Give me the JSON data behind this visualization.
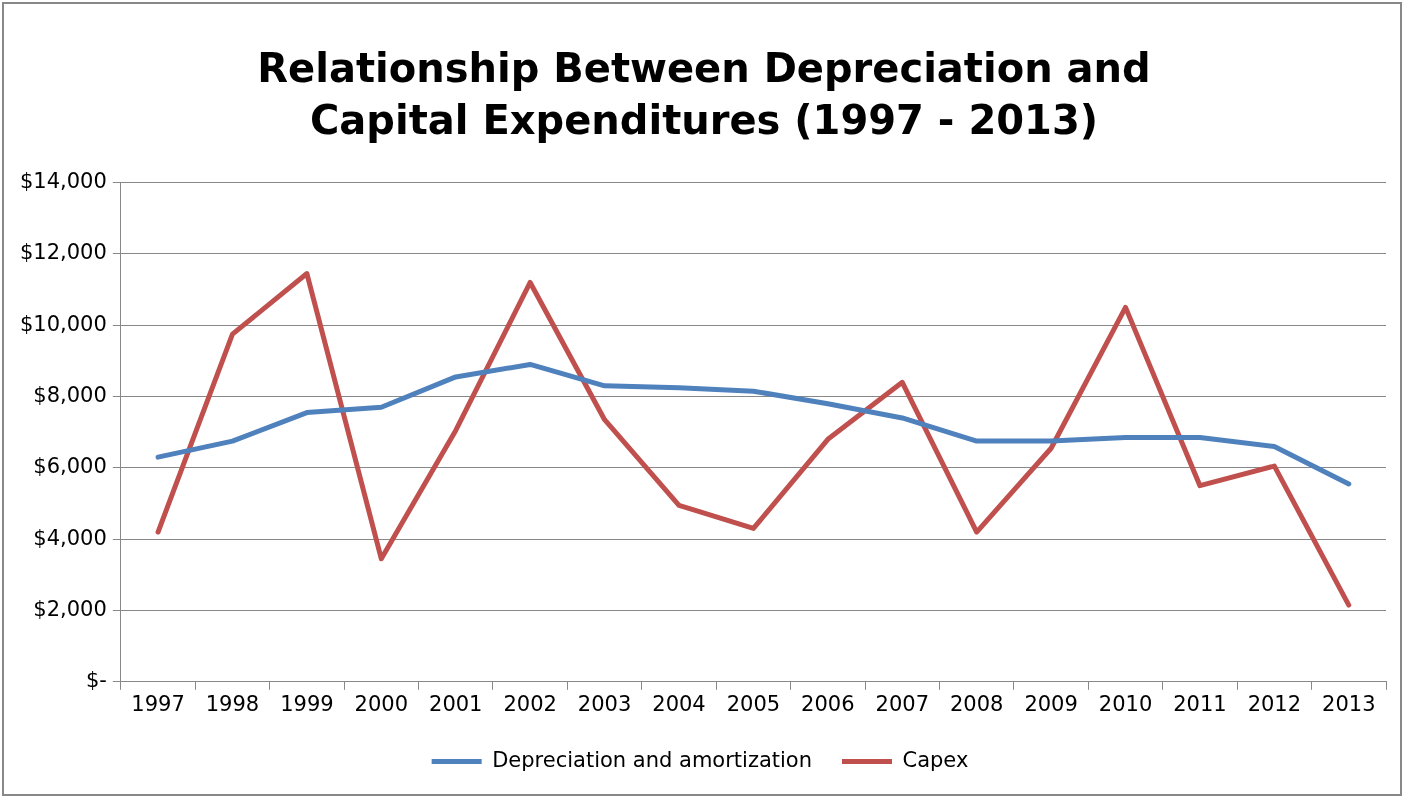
{
  "chart_data": {
    "type": "line",
    "title": "Relationship Between Depreciation and Capital Expenditures (1997 - 2013)",
    "categories": [
      "1997",
      "1998",
      "1999",
      "2000",
      "2001",
      "2002",
      "2003",
      "2004",
      "2005",
      "2006",
      "2007",
      "2008",
      "2009",
      "2010",
      "2011",
      "2012",
      "2013"
    ],
    "series": [
      {
        "name": "Depreciation and amortization",
        "color": "#4f81bd",
        "values": [
          6300,
          6750,
          7550,
          7700,
          8550,
          8900,
          8300,
          8250,
          8150,
          7800,
          7400,
          6750,
          6750,
          6850,
          6850,
          6600,
          5550
        ]
      },
      {
        "name": "Capex",
        "color": "#c0504d",
        "values": [
          4200,
          9750,
          11450,
          3450,
          7050,
          11200,
          7350,
          4950,
          4300,
          6800,
          8400,
          4200,
          6550,
          10500,
          5500,
          6050,
          2150
        ]
      }
    ],
    "ylim": [
      0,
      14000
    ],
    "yticks": [
      {
        "value": 0,
        "label": "$-"
      },
      {
        "value": 2000,
        "label": "$2,000"
      },
      {
        "value": 4000,
        "label": "$4,000"
      },
      {
        "value": 6000,
        "label": "$6,000"
      },
      {
        "value": 8000,
        "label": "$8,000"
      },
      {
        "value": 10000,
        "label": "$10,000"
      },
      {
        "value": 12000,
        "label": "$12,000"
      },
      {
        "value": 14000,
        "label": "$14,000"
      }
    ],
    "grid": "y",
    "legend": "bottom",
    "marker": "none",
    "line_style": "solid"
  }
}
